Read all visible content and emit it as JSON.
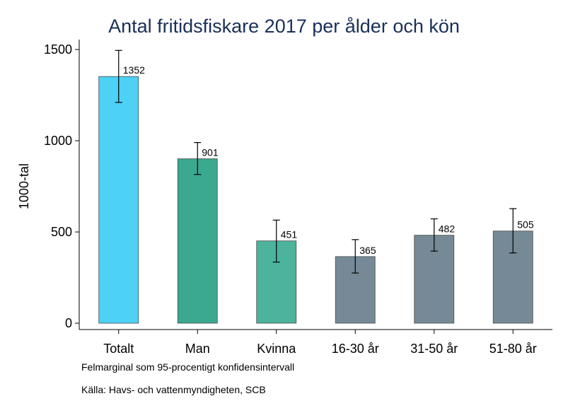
{
  "chart_data": {
    "type": "bar",
    "title": "Antal fritidsfiskare 2017 per ålder och kön",
    "xlabel": "",
    "ylabel": "1000-tal",
    "ylim": [
      0,
      1500
    ],
    "yticks": [
      0,
      500,
      1000,
      1500
    ],
    "categories": [
      "Totalt",
      "Man",
      "Kvinna",
      "16-30 år",
      "31-50 år",
      "51-80 år"
    ],
    "values": [
      1352,
      901,
      451,
      365,
      482,
      505
    ],
    "data_labels": [
      "1352",
      "901",
      "451",
      "365",
      "482",
      "505"
    ],
    "error_low": [
      1210,
      815,
      335,
      275,
      395,
      385
    ],
    "error_high": [
      1495,
      990,
      565,
      458,
      572,
      628
    ],
    "colors": [
      "#4dd1f5",
      "#3aa98f",
      "#4cb39d",
      "#758a96",
      "#758a96",
      "#758a96"
    ],
    "bar_border": "#4a4a4a",
    "grid": false,
    "legend": "none"
  },
  "notes": {
    "ci": "Felmarginal som 95-procentigt konfidensintervall",
    "source": "Källa: Havs- och vattenmyndigheten, SCB"
  }
}
